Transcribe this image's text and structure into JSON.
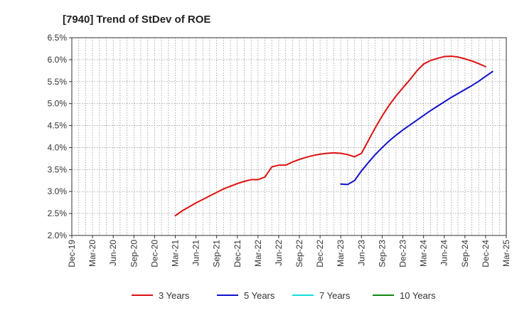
{
  "chart_data": {
    "type": "line",
    "title": "[7940]  Trend of StDev of ROE",
    "xlabel": "",
    "ylabel": "",
    "ylim": [
      2.0,
      6.5
    ],
    "y_ticks": [
      "2.0%",
      "2.5%",
      "3.0%",
      "3.5%",
      "4.0%",
      "4.5%",
      "5.0%",
      "5.5%",
      "6.0%",
      "6.5%"
    ],
    "x_ticks": [
      "Dec-19",
      "Mar-20",
      "Jun-20",
      "Sep-20",
      "Dec-20",
      "Mar-21",
      "Jun-21",
      "Sep-21",
      "Dec-21",
      "Mar-22",
      "Jun-22",
      "Sep-22",
      "Dec-22",
      "Mar-23",
      "Jun-23",
      "Sep-23",
      "Dec-23",
      "Mar-24",
      "Jun-24",
      "Sep-24",
      "Dec-24",
      "Mar-25"
    ],
    "grid": true,
    "legend_position": "bottom",
    "series": [
      {
        "name": "3 Years",
        "color": "#dd1111",
        "points": [
          [
            "Mar-21",
            2.45
          ],
          [
            "Apr-21",
            2.56
          ],
          [
            "May-21",
            2.65
          ],
          [
            "Jun-21",
            2.74
          ],
          [
            "Jul-21",
            2.82
          ],
          [
            "Aug-21",
            2.9
          ],
          [
            "Sep-21",
            2.98
          ],
          [
            "Oct-21",
            3.06
          ],
          [
            "Nov-21",
            3.12
          ],
          [
            "Dec-21",
            3.18
          ],
          [
            "Jan-22",
            3.23
          ],
          [
            "Feb-22",
            3.27
          ],
          [
            "Mar-22",
            3.27
          ],
          [
            "Apr-22",
            3.33
          ],
          [
            "May-22",
            3.56
          ],
          [
            "Jun-22",
            3.6
          ],
          [
            "Jul-22",
            3.6
          ],
          [
            "Aug-22",
            3.67
          ],
          [
            "Sep-22",
            3.73
          ],
          [
            "Oct-22",
            3.78
          ],
          [
            "Nov-22",
            3.82
          ],
          [
            "Dec-22",
            3.85
          ],
          [
            "Jan-23",
            3.87
          ],
          [
            "Feb-23",
            3.88
          ],
          [
            "Mar-23",
            3.87
          ],
          [
            "Apr-23",
            3.84
          ],
          [
            "May-23",
            3.79
          ],
          [
            "Jun-23",
            3.87
          ],
          [
            "Jul-23",
            4.16
          ],
          [
            "Aug-23",
            4.45
          ],
          [
            "Sep-23",
            4.72
          ],
          [
            "Oct-23",
            4.96
          ],
          [
            "Nov-23",
            5.17
          ],
          [
            "Dec-23",
            5.36
          ],
          [
            "Jan-24",
            5.54
          ],
          [
            "Feb-24",
            5.74
          ],
          [
            "Mar-24",
            5.9
          ],
          [
            "Apr-24",
            5.98
          ],
          [
            "May-24",
            6.03
          ],
          [
            "Jun-24",
            6.07
          ],
          [
            "Jul-24",
            6.08
          ],
          [
            "Aug-24",
            6.06
          ],
          [
            "Sep-24",
            6.02
          ],
          [
            "Oct-24",
            5.97
          ],
          [
            "Nov-24",
            5.91
          ],
          [
            "Dec-24",
            5.84
          ]
        ]
      },
      {
        "name": "5 Years",
        "color": "#1111cc",
        "points": [
          [
            "Mar-23",
            3.17
          ],
          [
            "Apr-23",
            3.16
          ],
          [
            "May-23",
            3.25
          ],
          [
            "Jun-23",
            3.47
          ],
          [
            "Jul-23",
            3.66
          ],
          [
            "Aug-23",
            3.84
          ],
          [
            "Sep-23",
            4.0
          ],
          [
            "Oct-23",
            4.15
          ],
          [
            "Nov-23",
            4.28
          ],
          [
            "Dec-23",
            4.4
          ],
          [
            "Jan-24",
            4.51
          ],
          [
            "Feb-24",
            4.62
          ],
          [
            "Mar-24",
            4.73
          ],
          [
            "Apr-24",
            4.84
          ],
          [
            "May-24",
            4.94
          ],
          [
            "Jun-24",
            5.04
          ],
          [
            "Jul-24",
            5.14
          ],
          [
            "Aug-24",
            5.23
          ],
          [
            "Sep-24",
            5.32
          ],
          [
            "Oct-24",
            5.41
          ],
          [
            "Nov-24",
            5.51
          ],
          [
            "Dec-24",
            5.62
          ],
          [
            "Jan-25",
            5.73
          ]
        ]
      },
      {
        "name": "7 Years",
        "color": "#11dddd",
        "points": []
      },
      {
        "name": "10 Years",
        "color": "#118811",
        "points": []
      }
    ]
  }
}
